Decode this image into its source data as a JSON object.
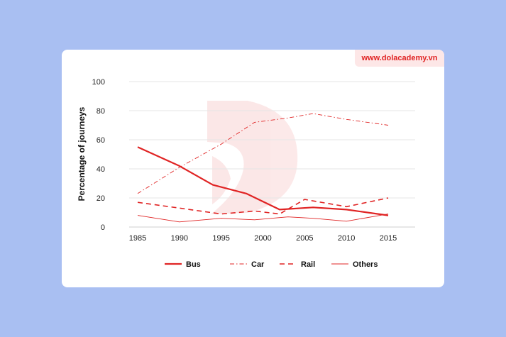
{
  "brand": {
    "text": "www.dolacademy.vn"
  },
  "chart_data": {
    "type": "line",
    "title": "",
    "xlabel": "",
    "ylabel": "Percentage of journeys",
    "x": [
      1985,
      1990,
      1995,
      2000,
      2005,
      2010,
      2015
    ],
    "xlim": [
      1985,
      2015
    ],
    "ylim": [
      0,
      100
    ],
    "yticks": [
      0,
      20,
      40,
      60,
      80,
      100
    ],
    "grid": true,
    "legend": "bottom",
    "series": [
      {
        "name": "Bus",
        "style": "solid-thick",
        "color": "#e02424",
        "points": [
          [
            1985,
            55
          ],
          [
            1990,
            42
          ],
          [
            1994,
            29
          ],
          [
            1998,
            23
          ],
          [
            2002,
            12
          ],
          [
            2006,
            13.5
          ],
          [
            2010,
            12
          ],
          [
            2015,
            8
          ]
        ]
      },
      {
        "name": "Car",
        "style": "dashdot",
        "color": "#e02424",
        "points": [
          [
            1985,
            23
          ],
          [
            1990,
            41
          ],
          [
            1995,
            57
          ],
          [
            1999,
            72
          ],
          [
            2003,
            75
          ],
          [
            2006,
            78
          ],
          [
            2010,
            74
          ],
          [
            2015,
            70
          ]
        ]
      },
      {
        "name": "Rail",
        "style": "dashed",
        "color": "#e02424",
        "points": [
          [
            1985,
            17
          ],
          [
            1990,
            13
          ],
          [
            1995,
            9
          ],
          [
            1999,
            11
          ],
          [
            2002,
            9
          ],
          [
            2005,
            19
          ],
          [
            2010,
            14
          ],
          [
            2015,
            20
          ]
        ]
      },
      {
        "name": "Others",
        "style": "solid-thin",
        "color": "#e02424",
        "points": [
          [
            1985,
            8
          ],
          [
            1990,
            3.5
          ],
          [
            1995,
            6
          ],
          [
            1999,
            5
          ],
          [
            2003,
            7
          ],
          [
            2006,
            6
          ],
          [
            2010,
            4
          ],
          [
            2015,
            9
          ]
        ]
      }
    ]
  }
}
